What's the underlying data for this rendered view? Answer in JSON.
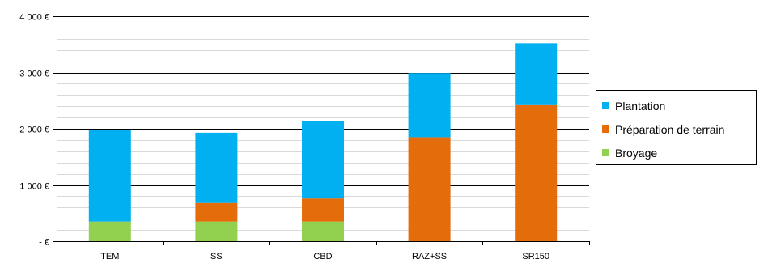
{
  "chart_data": {
    "type": "bar",
    "stacked": true,
    "categories": [
      "TEM",
      "SS",
      "CBD",
      "RAZ+SS",
      "SR150"
    ],
    "series": [
      {
        "name": "Broyage",
        "color": "#92D050",
        "values": [
          350,
          350,
          350,
          0,
          0
        ]
      },
      {
        "name": "Préparation de terrain",
        "color": "#E46C0A",
        "values": [
          0,
          330,
          410,
          1850,
          2420
        ]
      },
      {
        "name": "Plantation",
        "color": "#00B0F0",
        "values": [
          1630,
          1250,
          1370,
          1140,
          1100
        ]
      }
    ],
    "ylim": [
      0,
      4000
    ],
    "y_ticks": [
      0,
      1000,
      2000,
      3000,
      4000
    ],
    "y_tick_labels": [
      "- €",
      "1 000 €",
      "2 000 €",
      "3 000 €",
      "4 000 €"
    ],
    "grid": {
      "major": true,
      "minor": true
    },
    "legend": {
      "placement": "right",
      "order": [
        "Plantation",
        "Préparation de terrain",
        "Broyage"
      ]
    },
    "title": "",
    "xlabel": "",
    "ylabel": ""
  }
}
